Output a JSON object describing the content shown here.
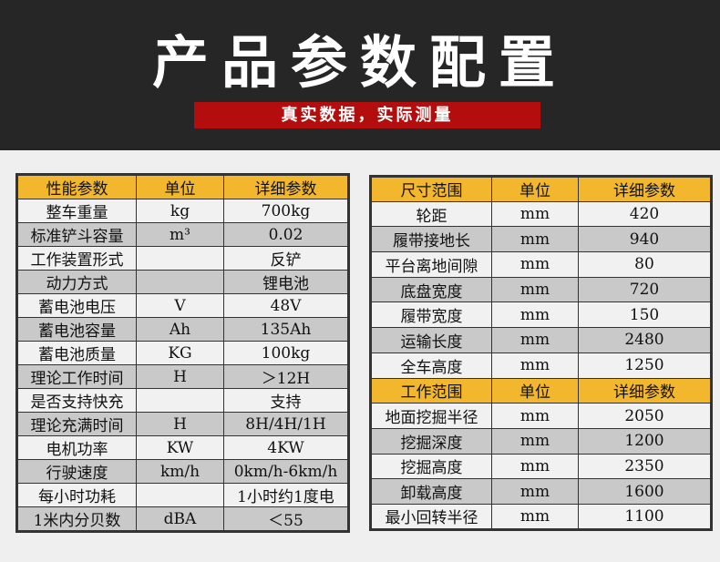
{
  "header": {
    "title": "产品参数配置",
    "subtitle": "真实数据，实际测量"
  },
  "colors": {
    "header_bg": "#262626",
    "subtitle_bg": "#b30d0d",
    "table_header": "#f2b72c",
    "row_alt": "#c9c9c9"
  },
  "left_table": {
    "headers": [
      "性能参数",
      "单位",
      "详细参数"
    ],
    "rows": [
      [
        "整车重量",
        "kg",
        "700kg"
      ],
      [
        "标准铲斗容量",
        "m³",
        "0.02"
      ],
      [
        "工作装置形式",
        "",
        "反铲"
      ],
      [
        "动力方式",
        "",
        "锂电池"
      ],
      [
        "蓄电池电压",
        "V",
        "48V"
      ],
      [
        "蓄电池容量",
        "Ah",
        "135Ah"
      ],
      [
        "蓄电池质量",
        "KG",
        "100kg"
      ],
      [
        "理论工作时间",
        "H",
        "＞12H"
      ],
      [
        "是否支持快充",
        "",
        "支持"
      ],
      [
        "理论充满时间",
        "H",
        "8H/4H/1H"
      ],
      [
        "电机功率",
        "KW",
        "4KW"
      ],
      [
        "行驶速度",
        "km/h",
        "0km/h-6km/h"
      ],
      [
        "每小时功耗",
        "",
        "1小时约1度电"
      ],
      [
        "1米内分贝数",
        "dBA",
        "＜55"
      ]
    ]
  },
  "right_table": {
    "sections": [
      {
        "headers": [
          "尺寸范围",
          "单位",
          "详细参数"
        ],
        "rows": [
          [
            "轮距",
            "mm",
            "420"
          ],
          [
            "履带接地长",
            "mm",
            "940"
          ],
          [
            "平台离地间隙",
            "mm",
            "80"
          ],
          [
            "底盘宽度",
            "mm",
            "720"
          ],
          [
            "履带宽度",
            "mm",
            "150"
          ],
          [
            "运输长度",
            "mm",
            "2480"
          ],
          [
            "全车高度",
            "mm",
            "1250"
          ]
        ]
      },
      {
        "headers": [
          "工作范围",
          "单位",
          "详细参数"
        ],
        "rows": [
          [
            "地面挖掘半径",
            "mm",
            "2050"
          ],
          [
            "挖掘深度",
            "mm",
            "1200"
          ],
          [
            "挖掘高度",
            "mm",
            "2350"
          ],
          [
            "卸载高度",
            "mm",
            "1600"
          ],
          [
            "最小回转半径",
            "mm",
            "1100"
          ]
        ]
      }
    ]
  }
}
